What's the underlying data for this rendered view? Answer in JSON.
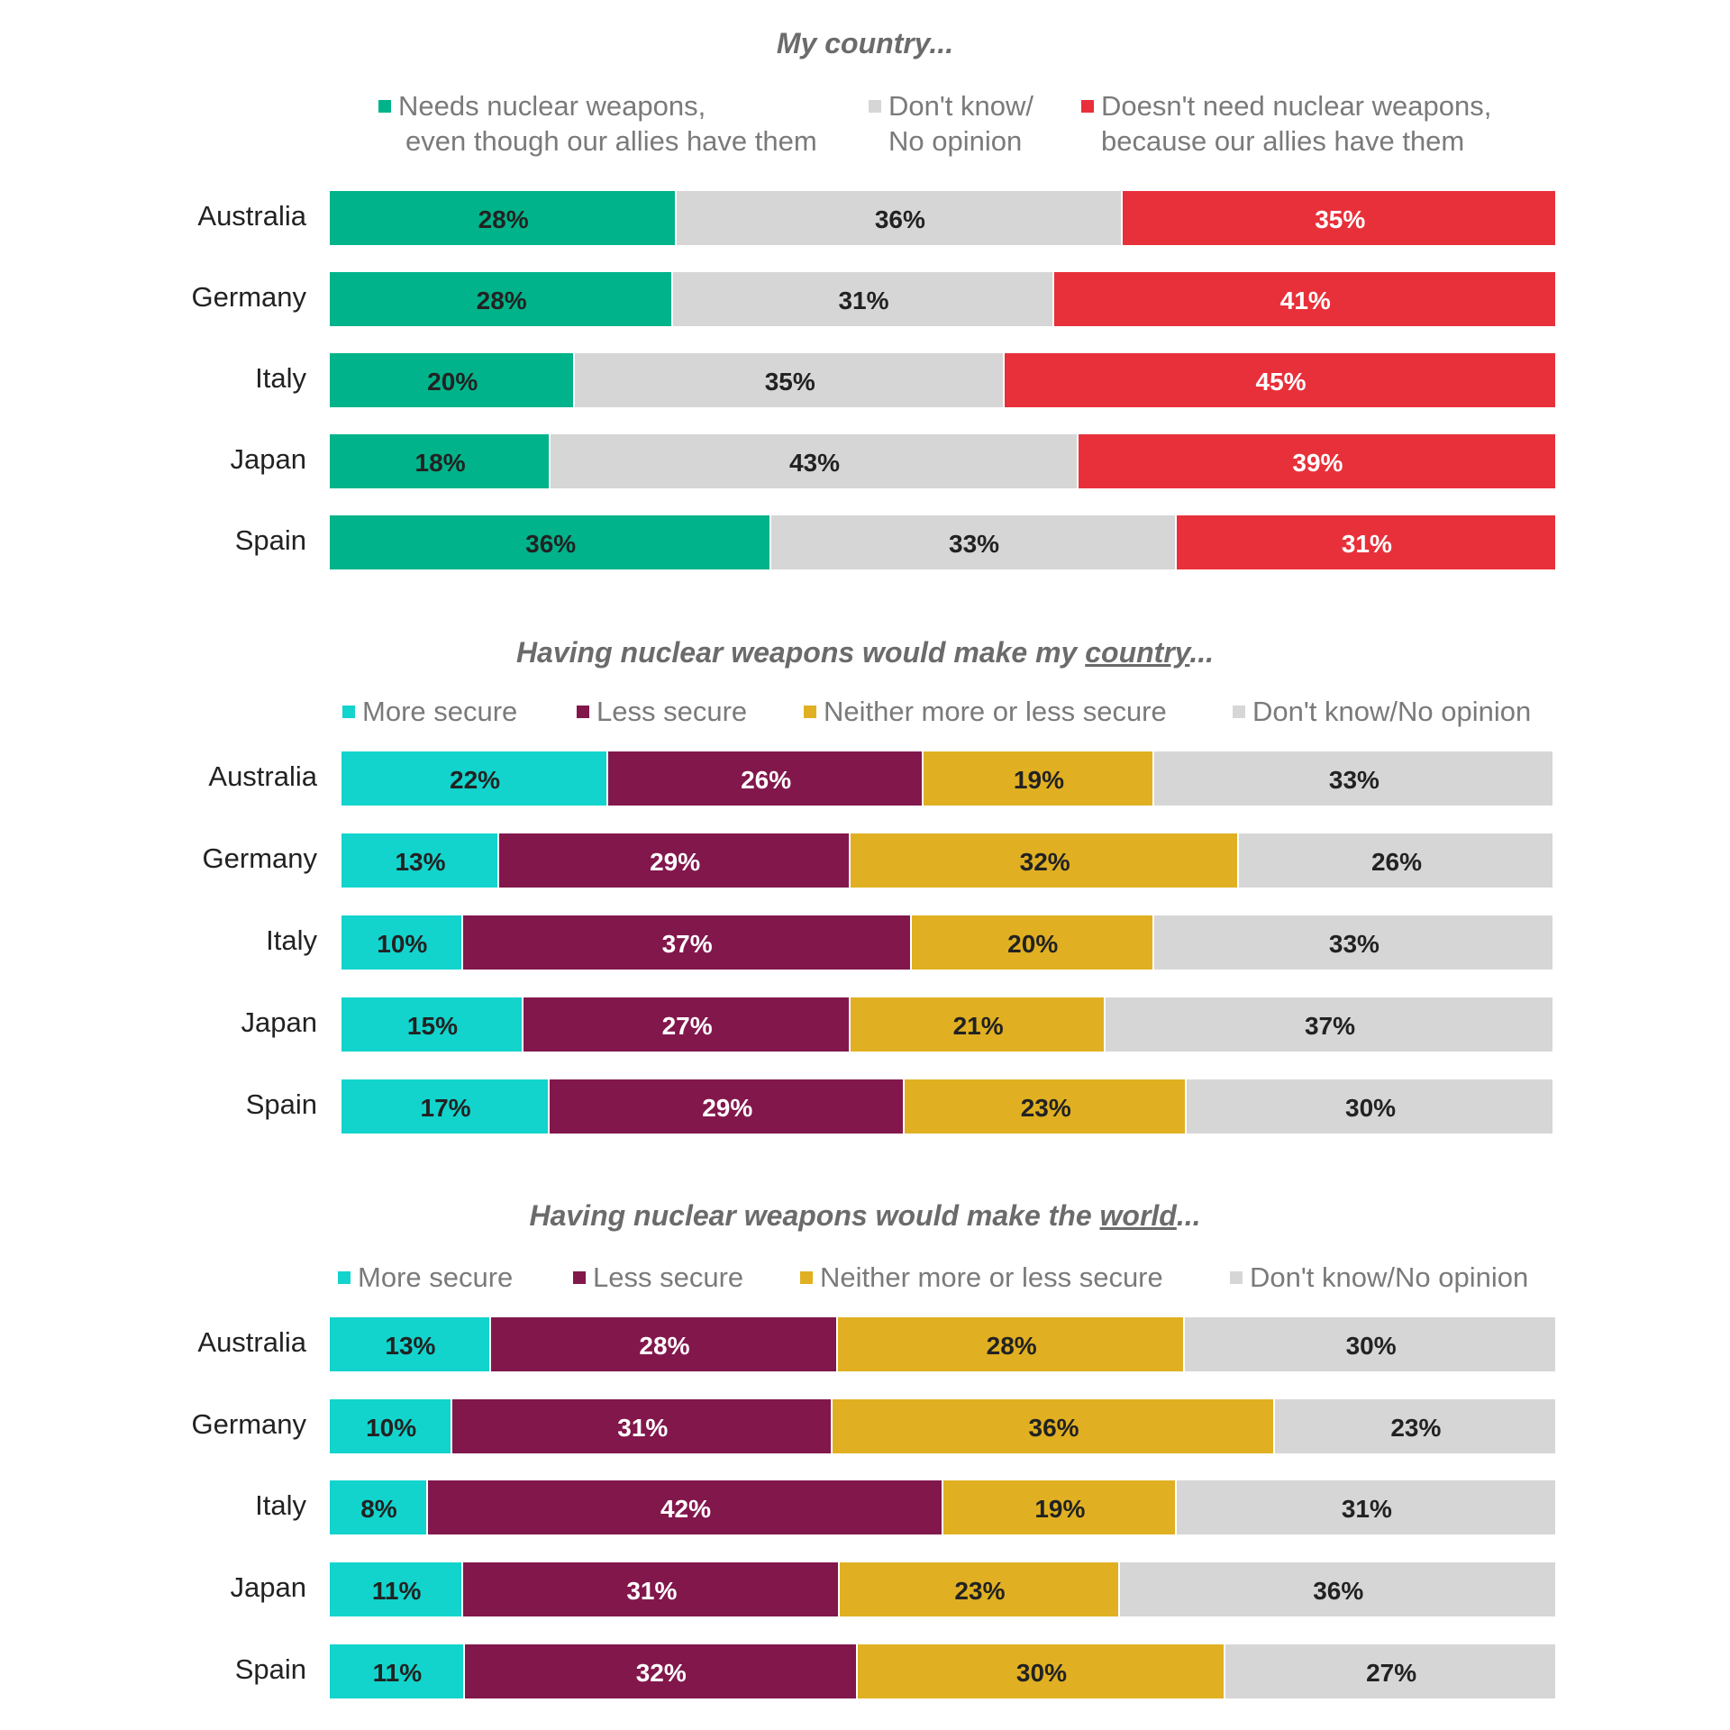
{
  "chart_data": [
    {
      "type": "bar",
      "orientation": "horizontal",
      "stacked": true,
      "title": "My country...",
      "categories": [
        "Australia",
        "Germany",
        "Italy",
        "Japan",
        "Spain"
      ],
      "series": [
        {
          "name": "Needs nuclear weapons, even though our allies have them",
          "color": "#00b38a",
          "values": [
            28,
            28,
            20,
            18,
            36
          ]
        },
        {
          "name": "Don't know/ No opinion",
          "color": "#d6d6d6",
          "values": [
            36,
            31,
            35,
            43,
            33
          ]
        },
        {
          "name": "Doesn't need nuclear weapons, because our allies have them",
          "color": "#e8303a",
          "values": [
            35,
            41,
            45,
            39,
            31
          ]
        }
      ],
      "legend": [
        {
          "line1": "Needs nuclear weapons,",
          "line2": "even though our allies have them",
          "color": "#00b38a"
        },
        {
          "line1": "Don't know/",
          "line2": "No opinion",
          "color": "#d6d6d6"
        },
        {
          "line1": "Doesn't need nuclear weapons,",
          "line2": "because our allies have them",
          "color": "#e8303a"
        }
      ],
      "label_colors": [
        "#222222",
        "#222222",
        "#ffffff"
      ],
      "legend_position": "top",
      "grid": false
    },
    {
      "type": "bar",
      "orientation": "horizontal",
      "stacked": true,
      "title": "Having nuclear weapons would make my country...",
      "title_parts": {
        "before": "Having nuclear weapons would make my ",
        "underlined": "country",
        "after": "..."
      },
      "categories": [
        "Australia",
        "Germany",
        "Italy",
        "Japan",
        "Spain"
      ],
      "series": [
        {
          "name": "More secure",
          "color": "#12d4cd",
          "values": [
            22,
            13,
            10,
            15,
            17
          ]
        },
        {
          "name": "Less secure",
          "color": "#82174c",
          "values": [
            26,
            29,
            37,
            27,
            29
          ]
        },
        {
          "name": "Neither more or less secure",
          "color": "#e0b022",
          "values": [
            19,
            32,
            20,
            21,
            23
          ]
        },
        {
          "name": "Don't know/No opinion",
          "color": "#d6d6d6",
          "values": [
            33,
            26,
            33,
            37,
            30
          ]
        }
      ],
      "label_colors": [
        "#222222",
        "#ffffff",
        "#222222",
        "#222222"
      ],
      "legend_position": "top",
      "grid": false
    },
    {
      "type": "bar",
      "orientation": "horizontal",
      "stacked": true,
      "title": "Having nuclear weapons would make the world...",
      "title_parts": {
        "before": "Having nuclear weapons would make the ",
        "underlined": "world",
        "after": "..."
      },
      "categories": [
        "Australia",
        "Germany",
        "Italy",
        "Japan",
        "Spain"
      ],
      "series": [
        {
          "name": "More secure",
          "color": "#12d4cd",
          "values": [
            13,
            10,
            8,
            11,
            11
          ]
        },
        {
          "name": "Less secure",
          "color": "#82174c",
          "values": [
            28,
            31,
            42,
            31,
            32
          ]
        },
        {
          "name": "Neither more or less secure",
          "color": "#e0b022",
          "values": [
            28,
            36,
            19,
            23,
            30
          ]
        },
        {
          "name": "Don't know/No opinion",
          "color": "#d6d6d6",
          "values": [
            30,
            23,
            31,
            36,
            27
          ]
        }
      ],
      "label_colors": [
        "#222222",
        "#ffffff",
        "#222222",
        "#222222"
      ],
      "legend_position": "top",
      "grid": false
    }
  ]
}
